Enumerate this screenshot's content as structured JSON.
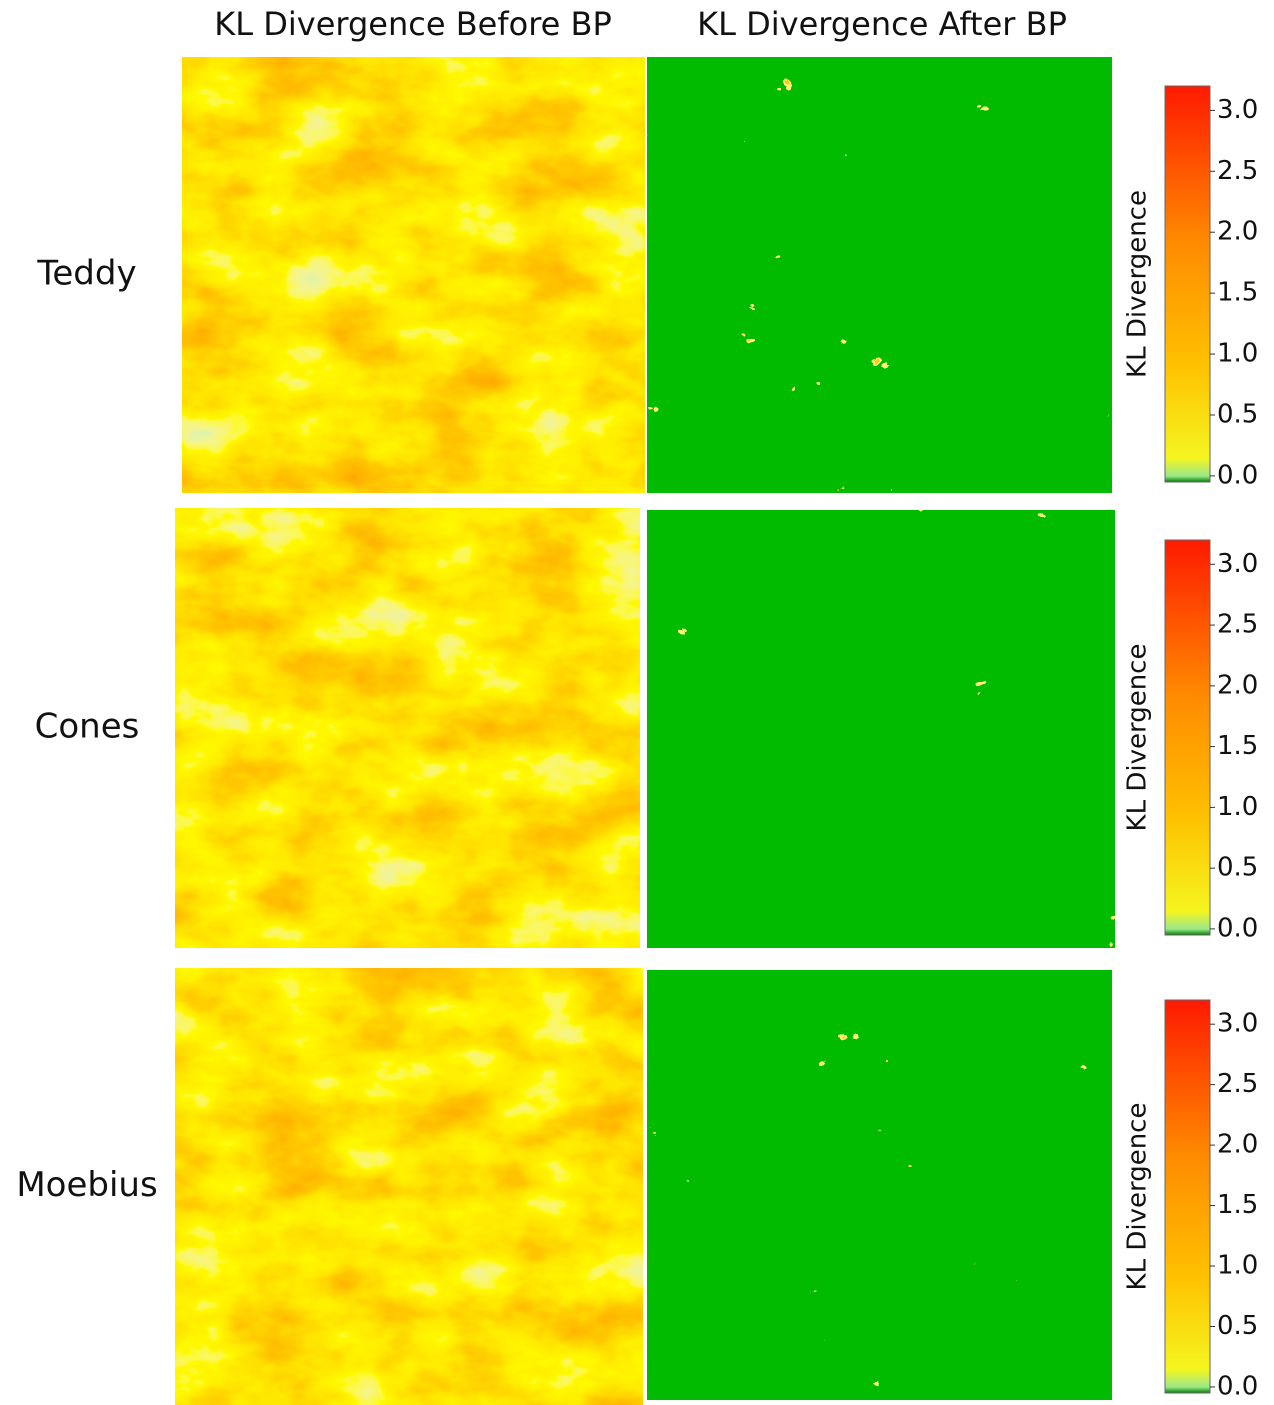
{
  "column_titles": [
    "KL Divergence Before BP",
    "KL Divergence After BP"
  ],
  "rows": [
    {
      "label": "Teddy",
      "colorbar": {
        "label": "KL Divergence",
        "ylim": [
          -0.05,
          3.2
        ],
        "yticks": [
          {
            "value": 0,
            "label": "0.0"
          },
          {
            "value": 0.5,
            "label": "0.5"
          },
          {
            "value": 1,
            "label": "1.0"
          },
          {
            "value": 1.5,
            "label": "1.5"
          },
          {
            "value": 2,
            "label": "2.0"
          },
          {
            "value": 2.5,
            "label": "2.5"
          },
          {
            "value": 3,
            "label": "3.0"
          }
        ]
      }
    },
    {
      "label": "Cones",
      "colorbar": {
        "label": "KL Divergence",
        "ylim": [
          -0.05,
          3.2
        ],
        "yticks": [
          {
            "value": 0,
            "label": "0.0"
          },
          {
            "value": 0.5,
            "label": "0.5"
          },
          {
            "value": 1,
            "label": "1.0"
          },
          {
            "value": 1.5,
            "label": "1.5"
          },
          {
            "value": 2,
            "label": "2.0"
          },
          {
            "value": 2.5,
            "label": "2.5"
          },
          {
            "value": 3,
            "label": "3.0"
          }
        ]
      }
    },
    {
      "label": "Moebius",
      "colorbar": {
        "label": "KL Divergence",
        "ylim": [
          -0.05,
          3.2
        ],
        "yticks": [
          {
            "value": 0,
            "label": "0.0"
          },
          {
            "value": 0.5,
            "label": "0.5"
          },
          {
            "value": 1,
            "label": "1.0"
          },
          {
            "value": 1.5,
            "label": "1.5"
          },
          {
            "value": 2,
            "label": "2.0"
          },
          {
            "value": 2.5,
            "label": "2.5"
          },
          {
            "value": 3,
            "label": "3.0"
          }
        ]
      }
    }
  ]
}
